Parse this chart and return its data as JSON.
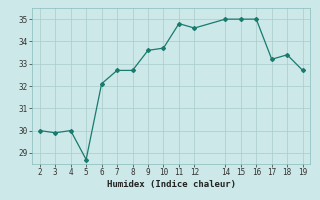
{
  "x": [
    2,
    3,
    4,
    5,
    6,
    7,
    8,
    9,
    10,
    11,
    12,
    14,
    15,
    16,
    17,
    18,
    19
  ],
  "y": [
    30.0,
    29.9,
    30.0,
    28.7,
    32.1,
    32.7,
    32.7,
    33.6,
    33.7,
    34.8,
    34.6,
    35.0,
    35.0,
    35.0,
    33.2,
    33.4,
    32.7
  ],
  "xlabel": "Humidex (Indice chaleur)",
  "xticks": [
    2,
    3,
    4,
    5,
    6,
    7,
    8,
    9,
    10,
    11,
    12,
    14,
    15,
    16,
    17,
    18,
    19
  ],
  "yticks": [
    29,
    30,
    31,
    32,
    33,
    34,
    35
  ],
  "ylim": [
    28.5,
    35.5
  ],
  "xlim": [
    1.5,
    19.5
  ],
  "line_color": "#1a7a6e",
  "marker": "D",
  "markersize": 2.0,
  "linewidth": 0.9,
  "bg_color": "#cce8e8",
  "grid_color": "#aacccc"
}
